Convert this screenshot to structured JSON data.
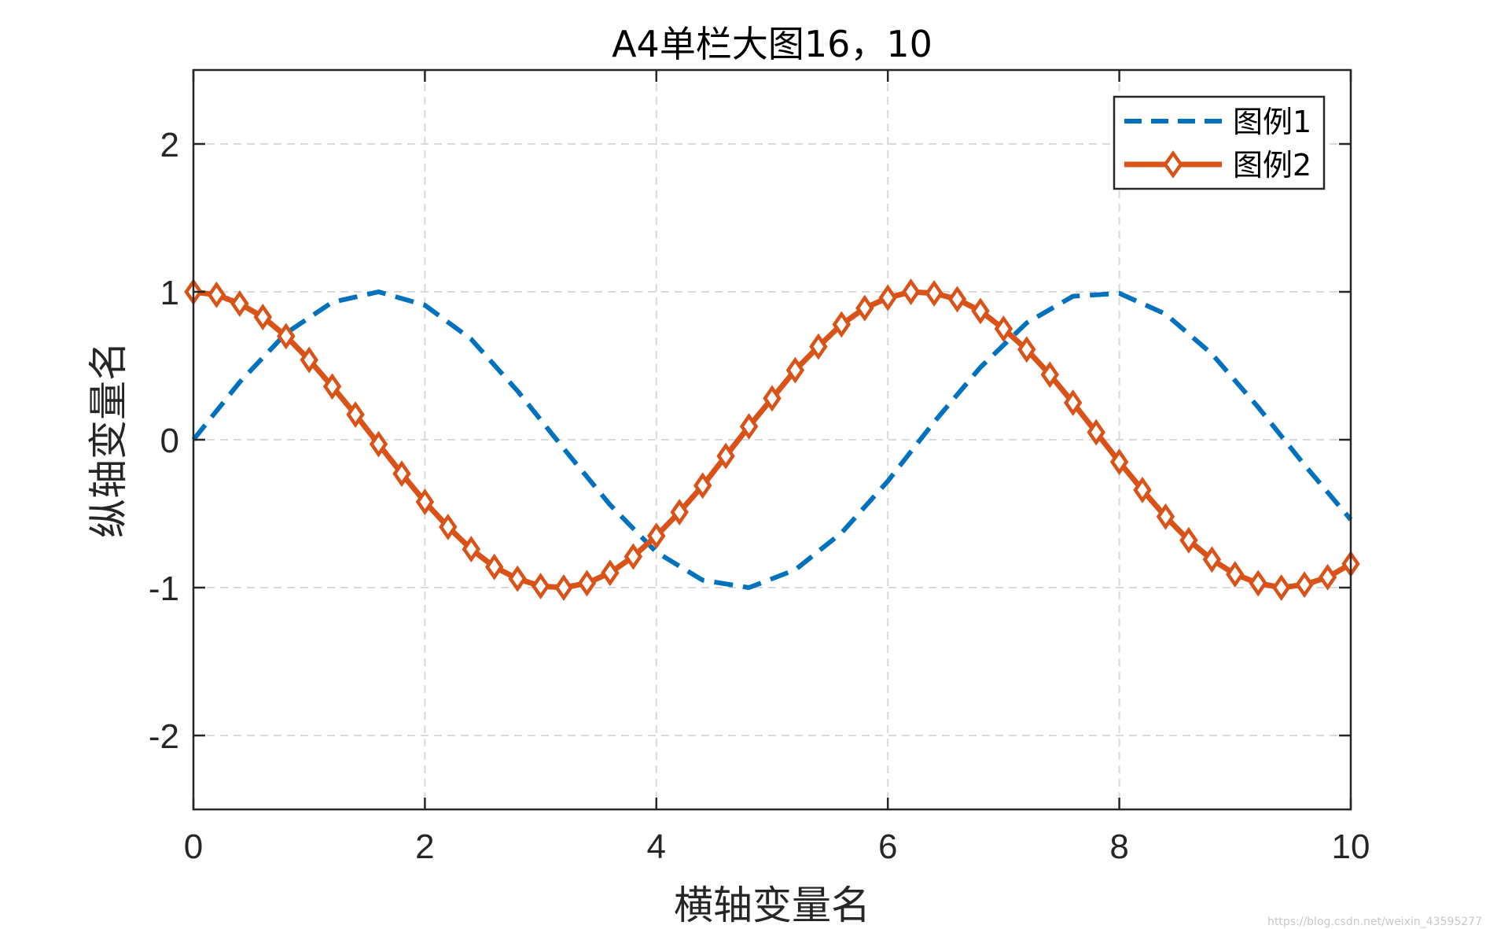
{
  "chart_data": {
    "type": "line",
    "title": "A4单栏大图16，10",
    "xlabel": "横轴变量名",
    "ylabel": "纵轴变量名",
    "xlim": [
      0,
      10
    ],
    "ylim": [
      -2.5,
      2.5
    ],
    "xticks": [
      0,
      2,
      4,
      6,
      8,
      10
    ],
    "yticks": [
      -2,
      -1,
      0,
      1,
      2
    ],
    "xtick_labels": [
      "0",
      "2",
      "4",
      "6",
      "8",
      "10"
    ],
    "ytick_labels": [
      "-2",
      "-1",
      "0",
      "1",
      "2"
    ],
    "grid": true,
    "grid_style": "dashed",
    "legend_position": "top-right",
    "series": [
      {
        "name": "图例1",
        "color": "#0072BD",
        "line_style": "dashed",
        "marker": "none",
        "x": [
          0,
          0.4,
          0.8,
          1.2,
          1.6,
          2.0,
          2.4,
          2.8,
          3.2,
          3.6,
          4.0,
          4.4,
          4.8,
          5.2,
          5.6,
          6.0,
          6.4,
          6.8,
          7.2,
          7.6,
          8.0,
          8.4,
          8.8,
          9.2,
          9.6,
          10.0
        ],
        "y": [
          0.0,
          0.39,
          0.72,
          0.93,
          1.0,
          0.91,
          0.68,
          0.33,
          -0.06,
          -0.44,
          -0.76,
          -0.95,
          -1.0,
          -0.88,
          -0.63,
          -0.28,
          0.12,
          0.49,
          0.79,
          0.97,
          0.99,
          0.85,
          0.58,
          0.22,
          -0.17,
          -0.54
        ]
      },
      {
        "name": "图例2",
        "color": "#D95319",
        "line_style": "solid",
        "marker": "diamond",
        "x": [
          0,
          0.2,
          0.4,
          0.6,
          0.8,
          1.0,
          1.2,
          1.4,
          1.6,
          1.8,
          2.0,
          2.2,
          2.4,
          2.6,
          2.8,
          3.0,
          3.2,
          3.4,
          3.6,
          3.8,
          4.0,
          4.2,
          4.4,
          4.6,
          4.8,
          5.0,
          5.2,
          5.4,
          5.6,
          5.8,
          6.0,
          6.2,
          6.4,
          6.6,
          6.8,
          7.0,
          7.2,
          7.4,
          7.6,
          7.8,
          8.0,
          8.2,
          8.4,
          8.6,
          8.8,
          9.0,
          9.2,
          9.4,
          9.6,
          9.8,
          10.0
        ],
        "y": [
          1.0,
          0.98,
          0.92,
          0.83,
          0.7,
          0.54,
          0.36,
          0.17,
          -0.03,
          -0.23,
          -0.42,
          -0.59,
          -0.74,
          -0.86,
          -0.94,
          -0.99,
          -1.0,
          -0.97,
          -0.9,
          -0.79,
          -0.65,
          -0.49,
          -0.31,
          -0.11,
          0.09,
          0.28,
          0.47,
          0.63,
          0.78,
          0.89,
          0.96,
          1.0,
          0.99,
          0.95,
          0.87,
          0.75,
          0.61,
          0.44,
          0.25,
          0.05,
          -0.15,
          -0.34,
          -0.52,
          -0.68,
          -0.81,
          -0.91,
          -0.97,
          -1.0,
          -0.98,
          -0.93,
          -0.84
        ]
      }
    ]
  },
  "watermark": "https://blog.csdn.net/weixin_43595277"
}
